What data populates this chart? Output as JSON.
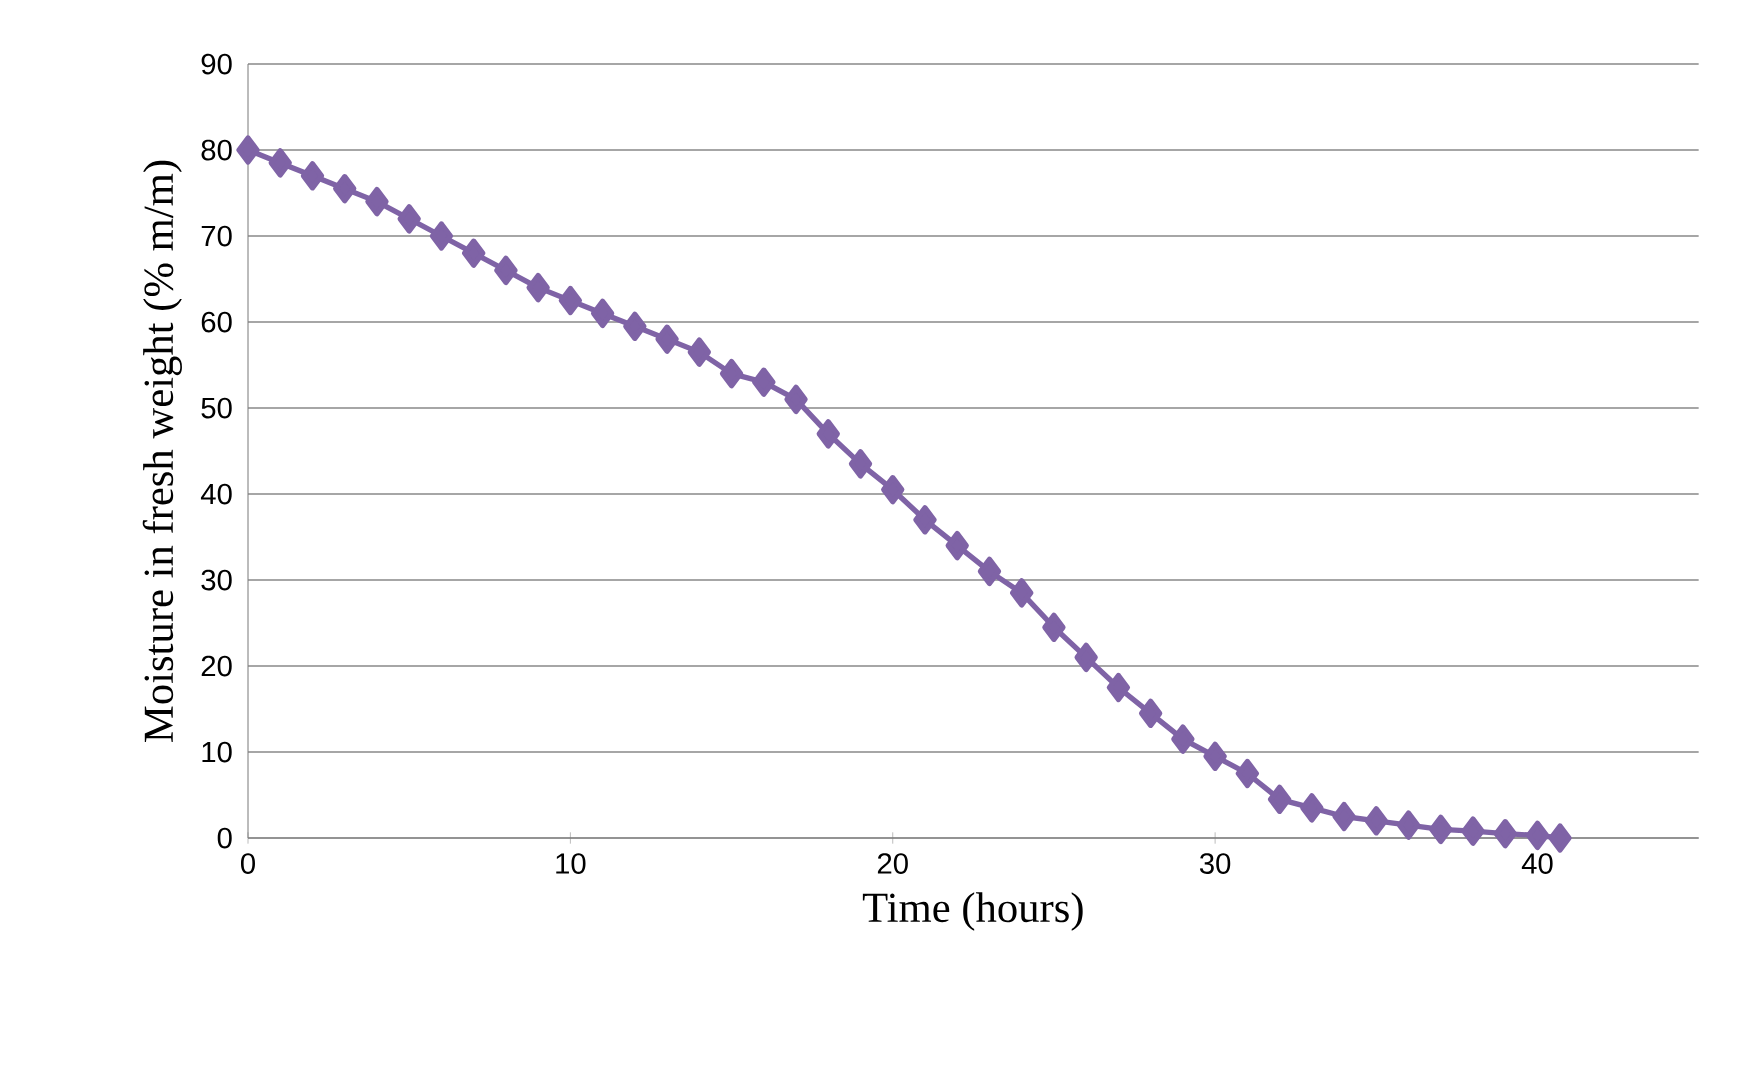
{
  "chart_data": {
    "type": "line",
    "xlabel": "Time (hours)",
    "ylabel": "Moisture in fresh weight (% m/m)",
    "xlim": [
      0,
      45
    ],
    "xticks": [
      0,
      10,
      20,
      30,
      40
    ],
    "ylim": [
      0,
      90
    ],
    "yticks": [
      0,
      10,
      20,
      30,
      40,
      50,
      60,
      70,
      80,
      90
    ],
    "grid": "y",
    "marker": "diamond",
    "line_style": "solid",
    "series": [
      {
        "color": "#7f63a6",
        "x": [
          0,
          1,
          2,
          3,
          4,
          5,
          6,
          7,
          8,
          9,
          10,
          11,
          12,
          13,
          14,
          15,
          16,
          17,
          18,
          19,
          20,
          21,
          22,
          23,
          24,
          25,
          26,
          27,
          28,
          29,
          30,
          31,
          32,
          33,
          34,
          35,
          36,
          37,
          38,
          39,
          40,
          40.7
        ],
        "values": [
          80,
          78.5,
          77,
          75.5,
          74,
          72,
          70,
          68,
          66,
          64,
          62.5,
          61,
          59.5,
          58,
          56.5,
          54,
          53,
          51,
          47,
          43.5,
          40.5,
          37,
          34,
          31,
          28.5,
          24.5,
          21,
          17.5,
          14.5,
          11.5,
          9.5,
          7.5,
          4.5,
          3.5,
          2.5,
          2,
          1.5,
          1,
          0.8,
          0.5,
          0.3,
          0
        ]
      }
    ]
  }
}
